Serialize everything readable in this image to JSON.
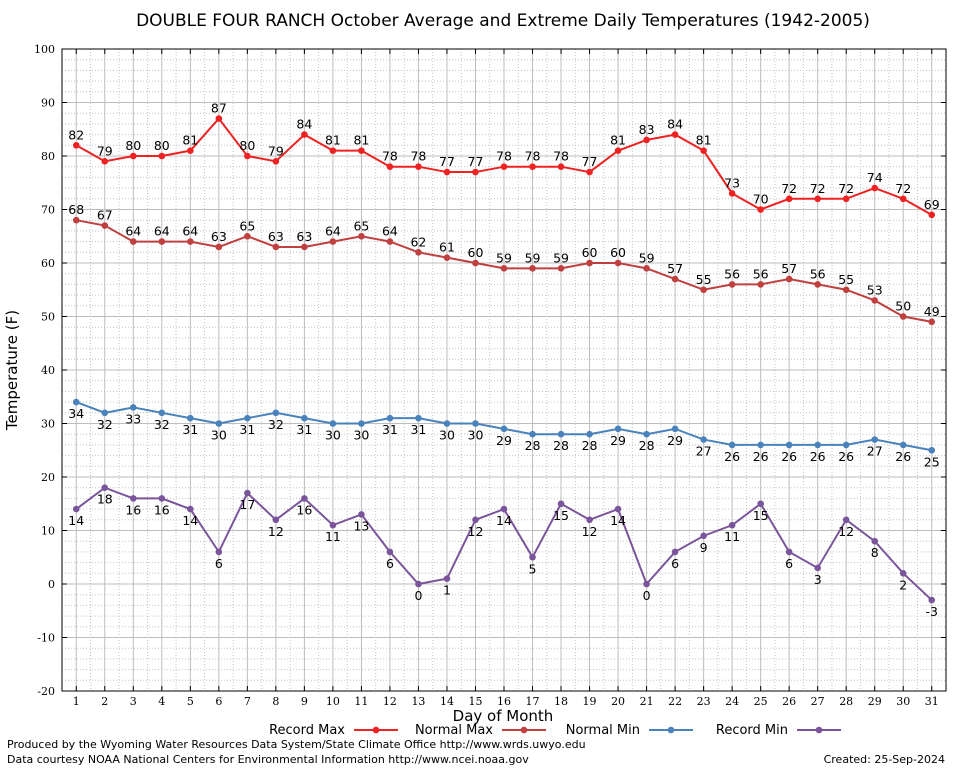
{
  "chart_data": {
    "type": "line",
    "title": "DOUBLE FOUR RANCH October Average and Extreme Daily Temperatures (1942-2005)",
    "xlabel": "Day of Month",
    "ylabel": "Temperature (F)",
    "xlim": [
      0.5,
      31.5
    ],
    "ylim": [
      -20,
      100
    ],
    "y_ticks": [
      -20,
      -10,
      0,
      10,
      20,
      30,
      40,
      50,
      60,
      70,
      80,
      90,
      100
    ],
    "x": [
      1,
      2,
      3,
      4,
      5,
      6,
      7,
      8,
      9,
      10,
      11,
      12,
      13,
      14,
      15,
      16,
      17,
      18,
      19,
      20,
      21,
      22,
      23,
      24,
      25,
      26,
      27,
      28,
      29,
      30,
      31
    ],
    "grid": true,
    "legend_position": "bottom",
    "series": [
      {
        "name": "Record Max",
        "color": "#ee2222",
        "values": [
          82,
          79,
          80,
          80,
          81,
          87,
          80,
          79,
          84,
          81,
          81,
          78,
          78,
          77,
          77,
          78,
          78,
          78,
          77,
          81,
          83,
          84,
          81,
          73,
          70,
          72,
          72,
          72,
          74,
          72,
          69
        ],
        "label_side": "above"
      },
      {
        "name": "Normal Max",
        "color": "#c04040",
        "values": [
          68,
          67,
          64,
          64,
          64,
          63,
          65,
          63,
          63,
          64,
          65,
          64,
          62,
          61,
          60,
          59,
          59,
          59,
          60,
          60,
          59,
          57,
          55,
          56,
          56,
          57,
          56,
          55,
          53,
          50,
          49
        ],
        "label_side": "above"
      },
      {
        "name": "Normal Min",
        "color": "#4a82bb",
        "values": [
          34,
          32,
          33,
          32,
          31,
          30,
          31,
          32,
          31,
          30,
          30,
          31,
          31,
          30,
          30,
          29,
          28,
          28,
          28,
          29,
          28,
          29,
          27,
          26,
          26,
          26,
          26,
          26,
          27,
          26,
          25
        ],
        "label_side": "below"
      },
      {
        "name": "Record Min",
        "color": "#7b559b",
        "values": [
          14,
          18,
          16,
          16,
          14,
          6,
          17,
          12,
          16,
          11,
          13,
          6,
          0,
          1,
          12,
          14,
          5,
          15,
          12,
          14,
          0,
          6,
          9,
          11,
          15,
          6,
          3,
          12,
          8,
          2,
          -3
        ],
        "label_side": "below"
      }
    ]
  },
  "footer": {
    "produced_by": "Produced by the Wyoming Water Resources Data System/State Climate Office http://www.wrds.uwyo.edu",
    "courtesy": "Data courtesy NOAA National Centers for Environmental Information http://www.ncei.noaa.gov",
    "created": "Created:  25-Sep-2024"
  }
}
